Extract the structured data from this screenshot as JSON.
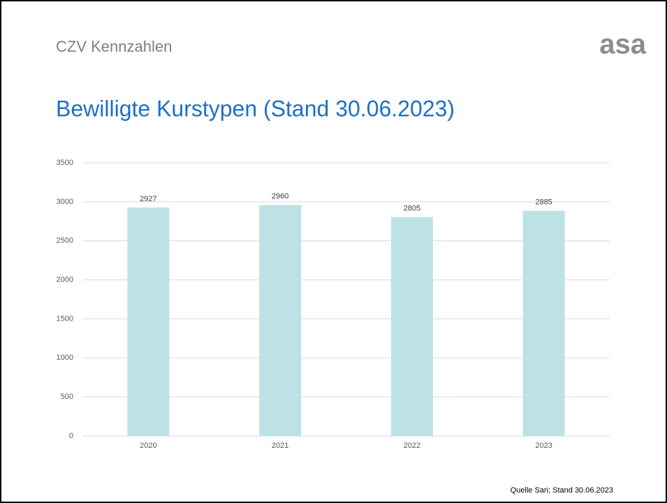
{
  "header": {
    "section": "CZV Kennzahlen",
    "logo": "asa"
  },
  "chart_data": {
    "type": "bar",
    "title": "Bewilligte Kurstypen (Stand 30.06.2023)",
    "categories": [
      "2020",
      "2021",
      "2022",
      "2023"
    ],
    "values": [
      2927,
      2960,
      2805,
      2885
    ],
    "color": "#bde2e5",
    "ylim": [
      0,
      3500
    ],
    "yticks": [
      0,
      500,
      1000,
      1500,
      2000,
      2500,
      3000,
      3500
    ],
    "grid": true,
    "note": "Quelle Sari; Stand 30.06.2023"
  }
}
